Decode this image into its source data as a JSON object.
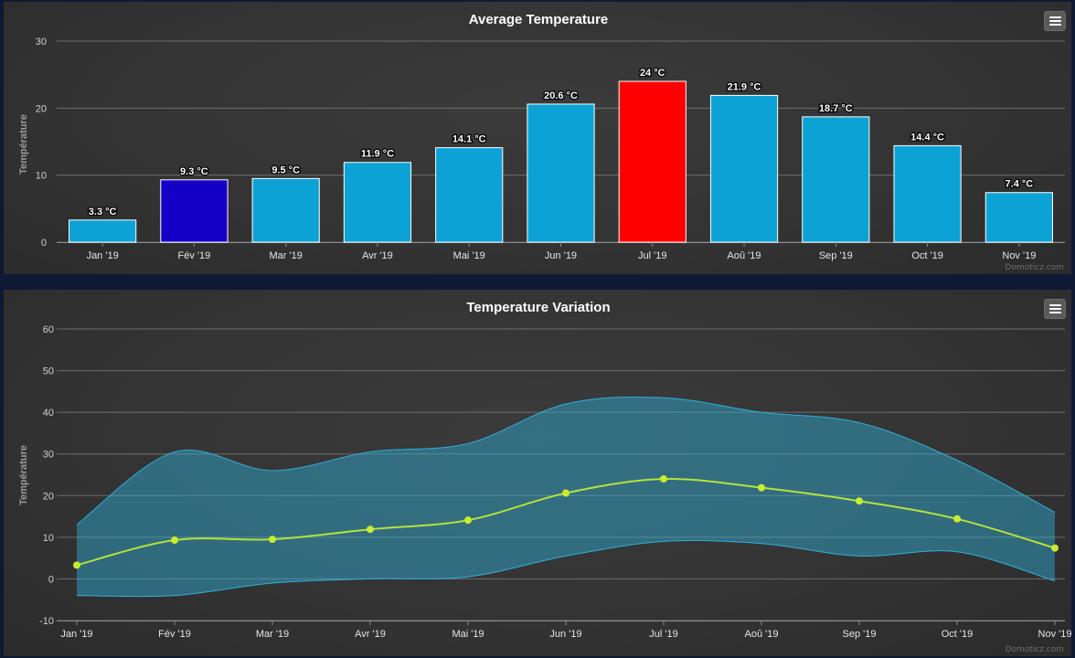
{
  "chart_data": [
    {
      "type": "bar",
      "title": "Average Temperature",
      "ylabel": "Température",
      "ylim": [
        0,
        30
      ],
      "yticks": [
        0,
        10,
        20,
        30
      ],
      "categories": [
        "Jan '19",
        "Fév '19",
        "Mar '19",
        "Avr '19",
        "Mai '19",
        "Jun '19",
        "Jul '19",
        "Aoû '19",
        "Sep '19",
        "Oct '19",
        "Nov '19"
      ],
      "values": [
        3.3,
        9.3,
        9.5,
        11.9,
        14.1,
        20.6,
        24,
        21.9,
        18.7,
        14.4,
        7.4
      ],
      "data_labels": [
        "3.3 °C",
        "9.3 °C",
        "9.5 °C",
        "11.9 °C",
        "14.1 °C",
        "20.6 °C",
        "24 °C",
        "21.9 °C",
        "18.7 °C",
        "14.4 °C",
        "7.4 °C"
      ],
      "colors": [
        "#0da2d6",
        "#1500c8",
        "#0da2d6",
        "#0da2d6",
        "#0da2d6",
        "#0da2d6",
        "#ff0000",
        "#0da2d6",
        "#0da2d6",
        "#0da2d6",
        "#0da2d6"
      ],
      "grid": true,
      "credit": "Domoticz.com"
    },
    {
      "type": "area",
      "title": "Temperature Variation",
      "ylabel": "Température",
      "ylim": [
        -10,
        60
      ],
      "yticks": [
        -10,
        0,
        10,
        20,
        30,
        40,
        50,
        60
      ],
      "categories": [
        "Jan '19",
        "Fév '19",
        "Mar '19",
        "Avr '19",
        "Mai '19",
        "Jun '19",
        "Jul '19",
        "Aoû '19",
        "Sep '19",
        "Oct '19",
        "Nov '19"
      ],
      "series": [
        {
          "kind": "range",
          "low": [
            -4,
            -4,
            -1,
            0,
            0.5,
            5.5,
            9,
            8.5,
            5.5,
            6.5,
            -0.5
          ],
          "high": [
            13,
            30.5,
            26,
            30.5,
            32.5,
            42,
            43.5,
            40,
            37.5,
            28.5,
            16
          ],
          "color": "#2fb0da"
        },
        {
          "kind": "line",
          "values": [
            3.3,
            9.3,
            9.5,
            11.9,
            14.1,
            20.6,
            24,
            21.9,
            18.7,
            14.4,
            7.4
          ],
          "color": "#b4e23c",
          "marker_color": "#c8ec2e"
        }
      ],
      "grid": true,
      "credit": "Domoticz.com"
    }
  ],
  "ui": {
    "menu_icon": "hamburger-menu-icon"
  }
}
